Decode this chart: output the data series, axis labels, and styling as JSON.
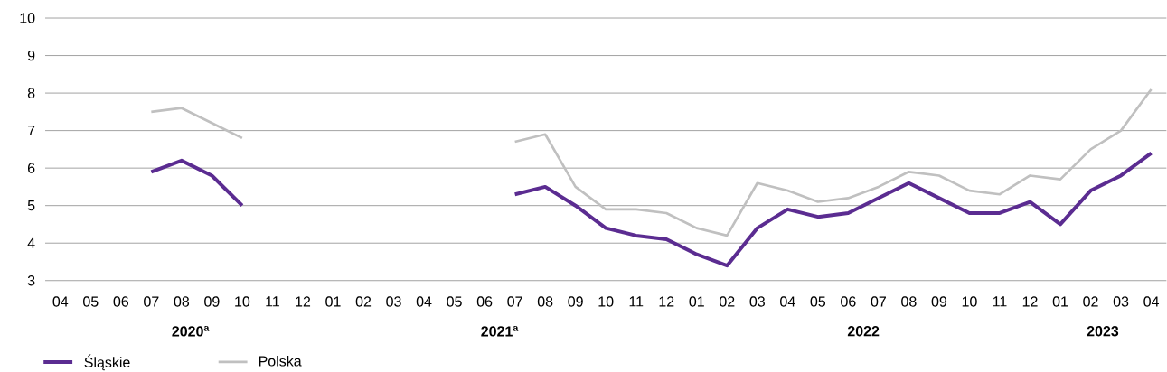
{
  "chart_data": {
    "type": "line",
    "categories": [
      "04",
      "05",
      "06",
      "07",
      "08",
      "09",
      "10",
      "11",
      "12",
      "01",
      "02",
      "03",
      "04",
      "05",
      "06",
      "07",
      "08",
      "09",
      "10",
      "11",
      "12",
      "01",
      "02",
      "03",
      "04",
      "05",
      "06",
      "07",
      "08",
      "09",
      "10",
      "11",
      "12",
      "01",
      "02",
      "03",
      "04"
    ],
    "series": [
      {
        "name": "Śląskie",
        "color": "#5b2c91",
        "values": [
          null,
          null,
          null,
          5.9,
          6.2,
          5.8,
          5.0,
          null,
          null,
          null,
          null,
          null,
          null,
          null,
          null,
          5.3,
          5.5,
          5.0,
          4.4,
          4.2,
          4.1,
          3.7,
          3.4,
          4.4,
          4.9,
          4.7,
          4.8,
          5.2,
          5.6,
          5.2,
          4.8,
          4.8,
          5.1,
          4.5,
          5.4,
          5.8,
          6.4
        ]
      },
      {
        "name": "Polska",
        "color": "#c0c0c0",
        "values": [
          null,
          null,
          null,
          7.5,
          7.6,
          7.2,
          6.8,
          null,
          null,
          null,
          null,
          null,
          null,
          null,
          null,
          6.7,
          6.9,
          5.5,
          4.9,
          4.9,
          4.8,
          4.4,
          4.2,
          5.6,
          5.4,
          5.1,
          5.2,
          5.5,
          5.9,
          5.8,
          5.4,
          5.3,
          5.8,
          5.7,
          6.5,
          7.0,
          8.1
        ]
      }
    ],
    "ylim": [
      3,
      10
    ],
    "yticks": [
      3,
      4,
      5,
      6,
      7,
      8,
      9,
      10
    ],
    "grid": "y",
    "legend": "bottom left",
    "annotations": [
      "2020$^{a}$",
      "2021$^{a}$",
      "2022",
      "2023"
    ]
  }
}
